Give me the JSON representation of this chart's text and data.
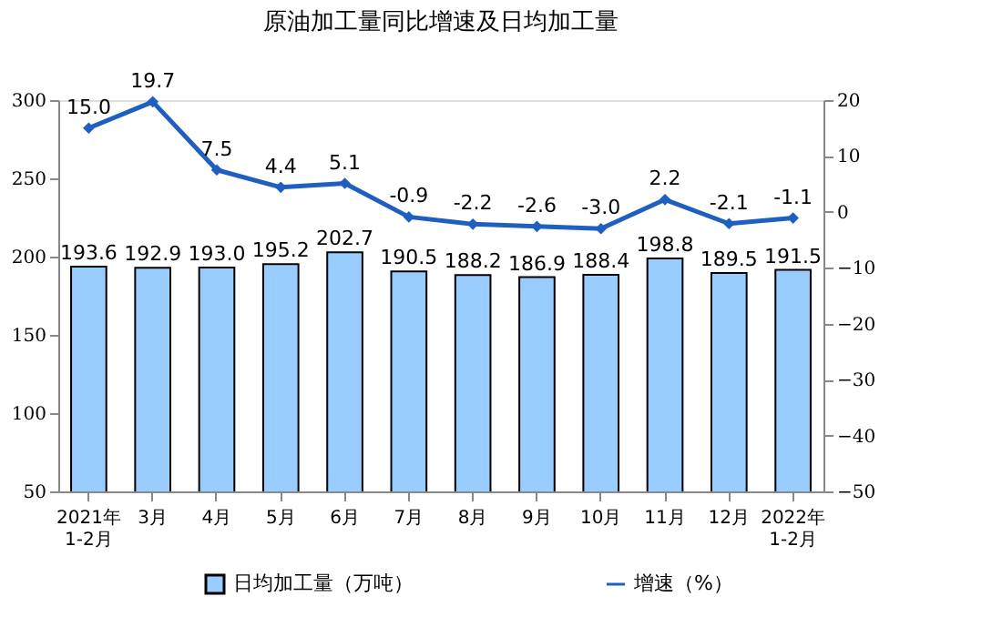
{
  "chart_data": {
    "type": "bar",
    "title": "原油加工量同比增速及日均加工量",
    "categories": [
      "2021年\n1-2月",
      "3月",
      "4月",
      "5月",
      "6月",
      "7月",
      "8月",
      "9月",
      "10月",
      "11月",
      "12月",
      "2022年\n1-2月"
    ],
    "series": [
      {
        "name": "日均加工量（万吨）",
        "color": "#99ccff",
        "values": [
          193.6,
          192.9,
          193.0,
          195.2,
          202.7,
          190.5,
          188.2,
          186.9,
          188.4,
          198.8,
          189.5,
          191.5
        ],
        "value_labels": [
          "193.6",
          "192.9",
          "193.0",
          "195.2",
          "202.7",
          "190.5",
          "188.2",
          "186.9",
          "188.4",
          "198.8",
          "189.5",
          "191.5"
        ]
      },
      {
        "name": "增速（%）",
        "type": "line",
        "axis": "y2",
        "color": "#1f5fbf",
        "marker": "diamond",
        "values": [
          15.0,
          19.7,
          7.5,
          4.4,
          5.1,
          -0.9,
          -2.2,
          -2.6,
          -3.0,
          2.2,
          -2.1,
          -1.1
        ],
        "value_labels": [
          "15.0",
          "19.7",
          "7.5",
          "4.4",
          "5.1",
          "-0.9",
          "-2.2",
          "-2.6",
          "-3.0",
          "2.2",
          "-2.1",
          "-1.1"
        ]
      }
    ],
    "ylim": [
      50,
      300
    ],
    "yticks": [
      50,
      100,
      150,
      200,
      250,
      300
    ],
    "y2lim": [
      -50,
      20
    ],
    "y2ticks": [
      -50,
      -40,
      -30,
      -20,
      -10,
      0,
      10,
      20
    ],
    "grid": false,
    "legend": "bottom"
  }
}
